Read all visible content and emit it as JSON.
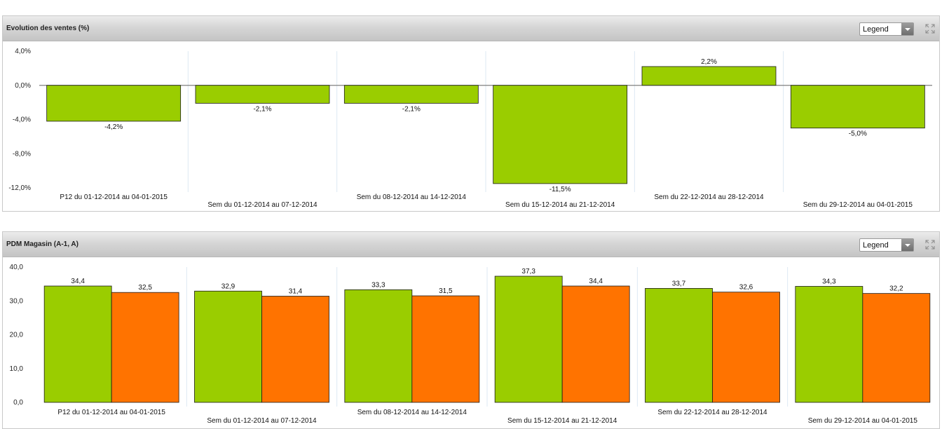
{
  "panels": [
    {
      "title": "Evolution des ventes (%)",
      "legend_label": "Legend",
      "icons": [
        "expand-icon",
        "chevron-down-icon"
      ]
    },
    {
      "title": "PDM Magasin (A-1, A)",
      "legend_label": "Legend",
      "icons": [
        "expand-icon",
        "chevron-down-icon"
      ]
    }
  ],
  "chart_data": [
    {
      "type": "bar",
      "categories": [
        "P12 du 01-12-2014 au 04-01-2015",
        "Sem du 01-12-2014 au 07-12-2014",
        "Sem du 08-12-2014 au 14-12-2014",
        "Sem du 15-12-2014 au 21-12-2014",
        "Sem du 22-12-2014 au 28-12-2014",
        "Sem du 29-12-2014 au 04-01-2015"
      ],
      "series": [
        {
          "values": [
            -4.2,
            -2.1,
            -2.1,
            -11.5,
            2.2,
            -5.0
          ],
          "labels": [
            "-4,2%",
            "-2,1%",
            "-2,1%",
            "-11,5%",
            "2,2%",
            "-5,0%"
          ],
          "color": "#9acd00"
        }
      ],
      "yticks": [
        "4,0%",
        "0,0%",
        "-4,0%",
        "-8,0%",
        "-12,0%"
      ],
      "ytick_values": [
        4,
        0,
        -4,
        -8,
        -12
      ],
      "ylim": [
        -12,
        4
      ],
      "title": "Evolution des ventes (%)",
      "grid": false
    },
    {
      "type": "bar",
      "categories": [
        "P12 du 01-12-2014 au 04-01-2015",
        "Sem du 01-12-2014 au 07-12-2014",
        "Sem du 08-12-2014 au 14-12-2014",
        "Sem du 15-12-2014 au 21-12-2014",
        "Sem du 22-12-2014 au 28-12-2014",
        "Sem du 29-12-2014 au 04-01-2015"
      ],
      "series": [
        {
          "values": [
            34.4,
            32.9,
            33.3,
            37.3,
            33.7,
            34.3
          ],
          "labels": [
            "34,4",
            "32,9",
            "33,3",
            "37,3",
            "33,7",
            "34,3"
          ],
          "color": "#9acd00"
        },
        {
          "values": [
            32.5,
            31.4,
            31.5,
            34.4,
            32.6,
            32.2
          ],
          "labels": [
            "32,5",
            "31,4",
            "31,5",
            "34,4",
            "32,6",
            "32,2"
          ],
          "color": "#ff7300"
        }
      ],
      "yticks": [
        "40,0",
        "30,0",
        "20,0",
        "10,0",
        "0,0"
      ],
      "ytick_values": [
        40,
        30,
        20,
        10,
        0
      ],
      "ylim": [
        0,
        40
      ],
      "title": "PDM Magasin (A-1, A)",
      "grid": false
    }
  ]
}
